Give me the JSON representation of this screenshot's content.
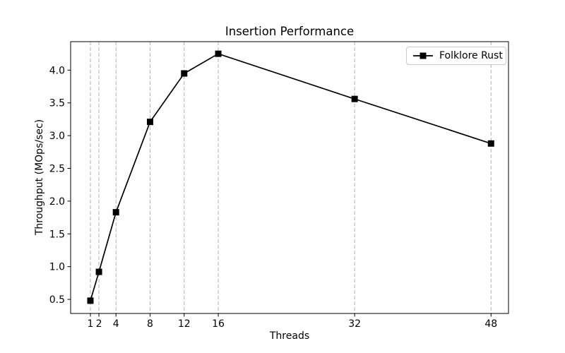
{
  "figure": {
    "background": "#ffffff",
    "foreground": "#000000"
  },
  "chart_data": {
    "type": "line",
    "title": "Insertion Performance",
    "xlabel": "Threads",
    "ylabel": "Throughput (MOps/sec)",
    "series": [
      {
        "name": "Folklore Rust",
        "color": "#000000",
        "marker": "square",
        "x": [
          1,
          2,
          4,
          8,
          12,
          16,
          32,
          48
        ],
        "values": [
          0.48,
          0.92,
          1.83,
          3.21,
          3.95,
          4.25,
          3.56,
          2.88
        ]
      }
    ],
    "xticks": [
      1,
      2,
      4,
      8,
      12,
      16,
      32,
      48
    ],
    "yticks": [
      0.5,
      1.0,
      1.5,
      2.0,
      2.5,
      3.0,
      3.5,
      4.0
    ],
    "xlim": [
      -1.32,
      50.05
    ],
    "ylim": [
      0.285,
      4.435
    ],
    "grid": {
      "vertical": true,
      "horizontal": false,
      "style": "dashed",
      "color": "#b0b0b0"
    },
    "legend": {
      "position": "upper right",
      "entries": [
        "Folklore Rust"
      ]
    }
  }
}
